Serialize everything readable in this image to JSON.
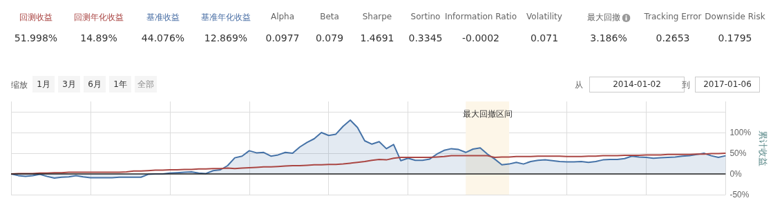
{
  "chart_data": {
    "type": "line",
    "annotations": [
      "回测收益",
      "51.998%",
      "回测年化收益",
      "14.89%",
      "基准收益",
      "44.076%",
      "基准年化收益",
      "12.869%",
      "Alpha",
      "0.0977",
      "Beta",
      "0.079",
      "Sharpe",
      "1.4691",
      "Sortino",
      "0.3345",
      "Information Ratio",
      "-0.0002",
      "Volatility",
      "0.071",
      "最大回撤",
      "3.186%",
      "Tracking Error",
      "0.2653",
      "Downside Risk",
      "0.1795",
      "缩放",
      "1月",
      "3月",
      "6月",
      "1年",
      "全部",
      "从",
      "2014-01-02",
      "到",
      "2017-01-06",
      "最大回撤区间"
    ],
    "ylabel": "累计收益",
    "categories": [
      null,
      null,
      null,
      null,
      null,
      null,
      null,
      null,
      null,
      null,
      null,
      null,
      null,
      null,
      null,
      null,
      null,
      null,
      null,
      null,
      null,
      null,
      null,
      null,
      null,
      null,
      null,
      null,
      null,
      null,
      null,
      null,
      null,
      null,
      null,
      null,
      null,
      null,
      null,
      null,
      null,
      null,
      null,
      null,
      null,
      null,
      null,
      null,
      null,
      null,
      null,
      null,
      null,
      null,
      null,
      null,
      null,
      null,
      null,
      null,
      null,
      null,
      null,
      null,
      null,
      null,
      null,
      null,
      null,
      null,
      null,
      null,
      null,
      null,
      null,
      null,
      null,
      null,
      null,
      null,
      null,
      null,
      null,
      null,
      null,
      null,
      null,
      null,
      null,
      null,
      null,
      null,
      null,
      null,
      null,
      null,
      null,
      null,
      null,
      null
    ],
    "series": [
      {
        "type": "area",
        "color": "#4572a7",
        "values": [
          0,
          -4,
          -6,
          -4,
          -1,
          -6,
          -10,
          -8,
          -7,
          -4,
          -7,
          -9,
          -9,
          -9,
          -9,
          -8,
          -8,
          -8,
          -8,
          -1,
          0,
          0,
          2,
          3,
          4,
          5,
          2,
          1,
          8,
          10,
          20,
          39,
          43,
          56,
          51,
          52,
          43,
          46,
          52,
          50,
          65,
          76,
          85,
          100,
          93,
          96,
          115,
          130,
          112,
          80,
          72,
          78,
          61,
          71,
          32,
          38,
          33,
          33,
          36,
          48,
          57,
          61,
          59,
          52,
          60,
          63,
          48,
          36,
          22,
          24,
          28,
          24,
          30,
          33,
          34,
          32,
          30,
          29,
          29,
          30,
          28,
          30,
          34,
          35,
          35,
          37,
          43,
          41,
          40,
          38,
          39,
          40,
          41,
          43,
          44,
          47,
          50,
          44,
          40,
          44
        ]
      },
      {
        "color": "#aa4643",
        "values": [
          0,
          1,
          1,
          1,
          2,
          2,
          3,
          3,
          4,
          4,
          4,
          4,
          4,
          4,
          4,
          4,
          5,
          7,
          7,
          8,
          9,
          9,
          10,
          10,
          11,
          11,
          12,
          12,
          13,
          13,
          14,
          13,
          14,
          15,
          16,
          17,
          17,
          18,
          19,
          20,
          20,
          21,
          22,
          22,
          23,
          23,
          24,
          26,
          28,
          30,
          33,
          35,
          34,
          38,
          40,
          40,
          40,
          40,
          40,
          41,
          42,
          44,
          44,
          44,
          44,
          44,
          44,
          40,
          41,
          41,
          42,
          42,
          42,
          43,
          43,
          43,
          43,
          42,
          42,
          42,
          43,
          43,
          44,
          44,
          44,
          45,
          45,
          45,
          46,
          46,
          46,
          47,
          47,
          47,
          47,
          48,
          48,
          49,
          49,
          50
        ]
      }
    ],
    "ylim": [
      -50,
      175
    ],
    "yticks": [
      {
        "value": -50,
        "label": "-50%"
      },
      {
        "value": 0,
        "label": "0%"
      },
      {
        "value": 50,
        "label": "50%"
      },
      {
        "value": 100,
        "label": "100%"
      },
      {
        "value": 150,
        "label": null
      }
    ],
    "grid": true,
    "tick_labels": "y",
    "ref_lines": [
      {
        "axis": "y",
        "value": 0,
        "color": "#222222"
      }
    ]
  }
}
